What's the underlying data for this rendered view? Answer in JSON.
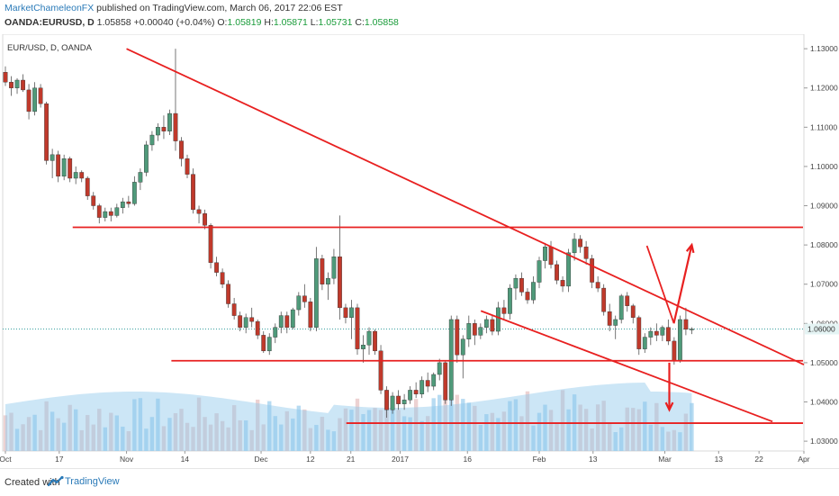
{
  "header": {
    "author": "MarketChameleonFX",
    "published_text": "published on TradingView.com, March 06, 2017 22:06 EST",
    "symbol": "OANDA:EURUSD, D",
    "last": "1.05858",
    "change": "+0.00040 (+0.04%)",
    "o_label": "O:",
    "o_value": "1.05819",
    "h_label": "H:",
    "h_value": "1.05871",
    "l_label": "L:",
    "l_value": "1.05731",
    "c_label": "C:",
    "c_value": "1.05858"
  },
  "footer": {
    "created_with": "Created with",
    "brand": "TradingView"
  },
  "colors": {
    "up_candle": "#4f9a7a",
    "down_candle": "#c0392b",
    "trendline": "#e82020",
    "volume": "#9fd0ee",
    "volume_ma": "#8ec7ec",
    "price_line": "#3aa0a0",
    "brand": "#2a7ab8"
  },
  "chart_data": {
    "type": "candlestick",
    "title": "EUR/USD, D, OANDA",
    "ylim": [
      1.0275,
      1.1337
    ],
    "yticks": [
      "1.13000",
      "1.12000",
      "1.11000",
      "1.10000",
      "1.09000",
      "1.08000",
      "1.07000",
      "1.06000",
      "1.05000",
      "1.04000",
      "1.03000"
    ],
    "xtick_labels": [
      {
        "label": "Oct",
        "day": 0
      },
      {
        "label": "17",
        "day": 12
      },
      {
        "label": "Nov",
        "day": 27
      },
      {
        "label": "14",
        "day": 40
      },
      {
        "label": "Dec",
        "day": 57
      },
      {
        "label": "12",
        "day": 68
      },
      {
        "label": "21",
        "day": 77
      },
      {
        "label": "2017",
        "day": 88
      },
      {
        "label": "16",
        "day": 103
      },
      {
        "label": "Feb",
        "day": 119
      },
      {
        "label": "13",
        "day": 131
      },
      {
        "label": "Mar",
        "day": 147
      },
      {
        "label": "13",
        "day": 159
      },
      {
        "label": "22",
        "day": 168
      },
      {
        "label": "Apr",
        "day": 178
      }
    ],
    "last_price": 1.05858,
    "ohlc_sample_daily": [
      [
        1.124,
        1.1255,
        1.1205,
        1.1215
      ],
      [
        1.1215,
        1.123,
        1.118,
        1.12
      ],
      [
        1.12,
        1.1225,
        1.1185,
        1.122
      ],
      [
        1.122,
        1.1235,
        1.119,
        1.1195
      ],
      [
        1.1195,
        1.121,
        1.112,
        1.114
      ],
      [
        1.114,
        1.1215,
        1.113,
        1.12
      ],
      [
        1.12,
        1.121,
        1.115,
        1.116
      ],
      [
        1.116,
        1.1165,
        1.1005,
        1.1015
      ],
      [
        1.1015,
        1.1045,
        1.097,
        1.103
      ],
      [
        1.103,
        1.104,
        1.096,
        1.0975
      ],
      [
        1.0975,
        1.103,
        1.0965,
        1.102
      ],
      [
        1.102,
        1.1025,
        1.096,
        1.097
      ],
      [
        1.097,
        1.1,
        1.0955,
        1.0985
      ],
      [
        1.0985,
        1.099,
        1.096,
        1.097
      ],
      [
        1.097,
        1.0975,
        1.0915,
        1.0925
      ],
      [
        1.0925,
        1.0935,
        1.089,
        1.09
      ],
      [
        1.09,
        1.0905,
        1.0855,
        1.087
      ],
      [
        1.087,
        1.0895,
        1.086,
        1.0885
      ],
      [
        1.0885,
        1.0895,
        1.086,
        1.0875
      ],
      [
        1.0875,
        1.0905,
        1.087,
        1.0895
      ],
      [
        1.0895,
        1.092,
        1.088,
        1.091
      ],
      [
        1.091,
        1.0925,
        1.0895,
        1.0905
      ],
      [
        1.0905,
        1.0975,
        1.09,
        1.096
      ],
      [
        1.096,
        1.0995,
        1.094,
        1.0985
      ],
      [
        1.0985,
        1.1065,
        1.0975,
        1.1055
      ],
      [
        1.1055,
        1.109,
        1.104,
        1.108
      ],
      [
        1.108,
        1.111,
        1.1065,
        1.11
      ],
      [
        1.11,
        1.113,
        1.107,
        1.109
      ],
      [
        1.109,
        1.1145,
        1.108,
        1.1135
      ],
      [
        1.1135,
        1.13,
        1.104,
        1.1065
      ],
      [
        1.1065,
        1.1075,
        1.1,
        1.102
      ],
      [
        1.102,
        1.103,
        1.097,
        1.098
      ],
      [
        1.098,
        1.0995,
        1.088,
        1.089
      ],
      [
        1.089,
        1.09,
        1.0855,
        1.088
      ],
      [
        1.088,
        1.089,
        1.084,
        1.085
      ],
      [
        1.085,
        1.0855,
        1.074,
        1.0755
      ],
      [
        1.0755,
        1.077,
        1.072,
        1.073
      ],
      [
        1.073,
        1.074,
        1.069,
        1.07
      ],
      [
        1.07,
        1.071,
        1.064,
        1.065
      ],
      [
        1.065,
        1.0665,
        1.061,
        1.062
      ],
      [
        1.062,
        1.063,
        1.058,
        1.059
      ],
      [
        1.059,
        1.0625,
        1.0575,
        1.0615
      ],
      [
        1.0615,
        1.064,
        1.059,
        1.0605
      ],
      [
        1.0605,
        1.061,
        1.056,
        1.057
      ],
      [
        1.057,
        1.058,
        1.0525,
        1.053
      ],
      [
        1.053,
        1.0575,
        1.052,
        1.0565
      ],
      [
        1.0565,
        1.06,
        1.055,
        1.059
      ],
      [
        1.059,
        1.063,
        1.0575,
        1.062
      ],
      [
        1.062,
        1.063,
        1.0575,
        1.059
      ],
      [
        1.059,
        1.064,
        1.0585,
        1.0635
      ],
      [
        1.0635,
        1.068,
        1.062,
        1.067
      ],
      [
        1.067,
        1.07,
        1.064,
        1.0655
      ],
      [
        1.0655,
        1.0665,
        1.058,
        1.059
      ],
      [
        1.059,
        1.0795,
        1.058,
        1.0765
      ],
      [
        1.0765,
        1.0775,
        1.0685,
        1.07
      ],
      [
        1.07,
        1.073,
        1.066,
        1.0715
      ],
      [
        1.0715,
        1.079,
        1.07,
        1.077
      ],
      [
        1.077,
        1.0875,
        1.061,
        1.064
      ],
      [
        1.064,
        1.065,
        1.06,
        1.0615
      ],
      [
        1.0615,
        1.066,
        1.056,
        1.064
      ],
      [
        1.064,
        1.065,
        1.052,
        1.0535
      ],
      [
        1.0535,
        1.057,
        1.05,
        1.0545
      ],
      [
        1.0545,
        1.059,
        1.052,
        1.058
      ],
      [
        1.058,
        1.0585,
        1.052,
        1.053
      ],
      [
        1.053,
        1.0545,
        1.042,
        1.043
      ],
      [
        1.043,
        1.044,
        1.036,
        1.038
      ],
      [
        1.038,
        1.0425,
        1.037,
        1.0415
      ],
      [
        1.0415,
        1.043,
        1.038,
        1.0395
      ],
      [
        1.0395,
        1.042,
        1.038,
        1.0405
      ],
      [
        1.0405,
        1.044,
        1.0395,
        1.043
      ],
      [
        1.043,
        1.045,
        1.041,
        1.042
      ],
      [
        1.042,
        1.0465,
        1.041,
        1.0455
      ],
      [
        1.0455,
        1.0475,
        1.0425,
        1.044
      ],
      [
        1.044,
        1.0475,
        1.043,
        1.047
      ],
      [
        1.047,
        1.051,
        1.0455,
        1.05
      ],
      [
        1.05,
        1.0505,
        1.0395,
        1.0405
      ],
      [
        1.0405,
        1.062,
        1.039,
        1.061
      ],
      [
        1.061,
        1.062,
        1.05,
        1.052
      ],
      [
        1.052,
        1.057,
        1.046,
        1.056
      ],
      [
        1.056,
        1.062,
        1.054,
        1.06
      ],
      [
        1.06,
        1.061,
        1.0545,
        1.057
      ],
      [
        1.057,
        1.06,
        1.056,
        1.059
      ],
      [
        1.059,
        1.062,
        1.0575,
        1.061
      ],
      [
        1.061,
        1.062,
        1.057,
        1.058
      ],
      [
        1.058,
        1.0655,
        1.057,
        1.064
      ],
      [
        1.064,
        1.066,
        1.061,
        1.0625
      ],
      [
        1.0625,
        1.07,
        1.061,
        1.069
      ],
      [
        1.069,
        1.0725,
        1.066,
        1.0715
      ],
      [
        1.0715,
        1.073,
        1.067,
        1.068
      ],
      [
        1.068,
        1.069,
        1.065,
        1.066
      ],
      [
        1.066,
        1.072,
        1.065,
        1.0705
      ],
      [
        1.0705,
        1.077,
        1.069,
        1.076
      ],
      [
        1.076,
        1.0805,
        1.074,
        1.0795
      ],
      [
        1.0795,
        1.081,
        1.074,
        1.075
      ],
      [
        1.075,
        1.076,
        1.07,
        1.071
      ],
      [
        1.071,
        1.072,
        1.068,
        1.0695
      ],
      [
        1.0695,
        1.079,
        1.068,
        1.078
      ],
      [
        1.078,
        1.083,
        1.076,
        1.0815
      ],
      [
        1.0815,
        1.0825,
        1.078,
        1.0795
      ],
      [
        1.0795,
        1.081,
        1.075,
        1.0765
      ],
      [
        1.0765,
        1.0775,
        1.069,
        1.0705
      ],
      [
        1.0705,
        1.072,
        1.068,
        1.069
      ],
      [
        1.069,
        1.07,
        1.062,
        1.063
      ],
      [
        1.063,
        1.065,
        1.058,
        1.0595
      ],
      [
        1.0595,
        1.062,
        1.056,
        1.061
      ],
      [
        1.061,
        1.0675,
        1.06,
        1.067
      ],
      [
        1.067,
        1.068,
        1.063,
        1.0645
      ],
      [
        1.0645,
        1.065,
        1.06,
        1.0615
      ],
      [
        1.0615,
        1.062,
        1.052,
        1.0535
      ],
      [
        1.0535,
        1.0575,
        1.0525,
        1.0565
      ],
      [
        1.0565,
        1.059,
        1.0545,
        1.058
      ],
      [
        1.058,
        1.06,
        1.0555,
        1.057
      ],
      [
        1.057,
        1.0595,
        1.0555,
        1.059
      ],
      [
        1.059,
        1.061,
        1.0545,
        1.0555
      ],
      [
        1.0555,
        1.0565,
        1.0495,
        1.0505
      ],
      [
        1.0505,
        1.062,
        1.05,
        1.061
      ],
      [
        1.061,
        1.064,
        1.057,
        1.0585
      ],
      [
        1.0585,
        1.059,
        1.0573,
        1.05858
      ]
    ],
    "annotations": [
      {
        "type": "trendline",
        "from": {
          "day": 27,
          "price": 1.13
        },
        "to": {
          "day": 178,
          "price": 1.0495
        }
      },
      {
        "type": "trendline",
        "from": {
          "day": 106,
          "price": 1.0632
        },
        "to": {
          "day": 171,
          "price": 1.035
        }
      },
      {
        "type": "trendline",
        "from": {
          "day": 149,
          "price": 1.0601
        },
        "to": {
          "day": 143,
          "price": 1.0798
        }
      },
      {
        "type": "hline",
        "price": 1.0845,
        "from_day": 15
      },
      {
        "type": "hline",
        "price": 1.0505,
        "from_day": 37
      },
      {
        "type": "hline",
        "price": 1.0346,
        "from_day": 76
      },
      {
        "type": "arrow",
        "direction": "up",
        "from": {
          "day": 149,
          "price": 1.06
        },
        "to": {
          "day": 153,
          "price": 1.08
        }
      },
      {
        "type": "arrow",
        "direction": "down",
        "from": {
          "day": 148,
          "price": 1.05
        },
        "to": {
          "day": 148,
          "price": 1.038
        }
      }
    ]
  }
}
